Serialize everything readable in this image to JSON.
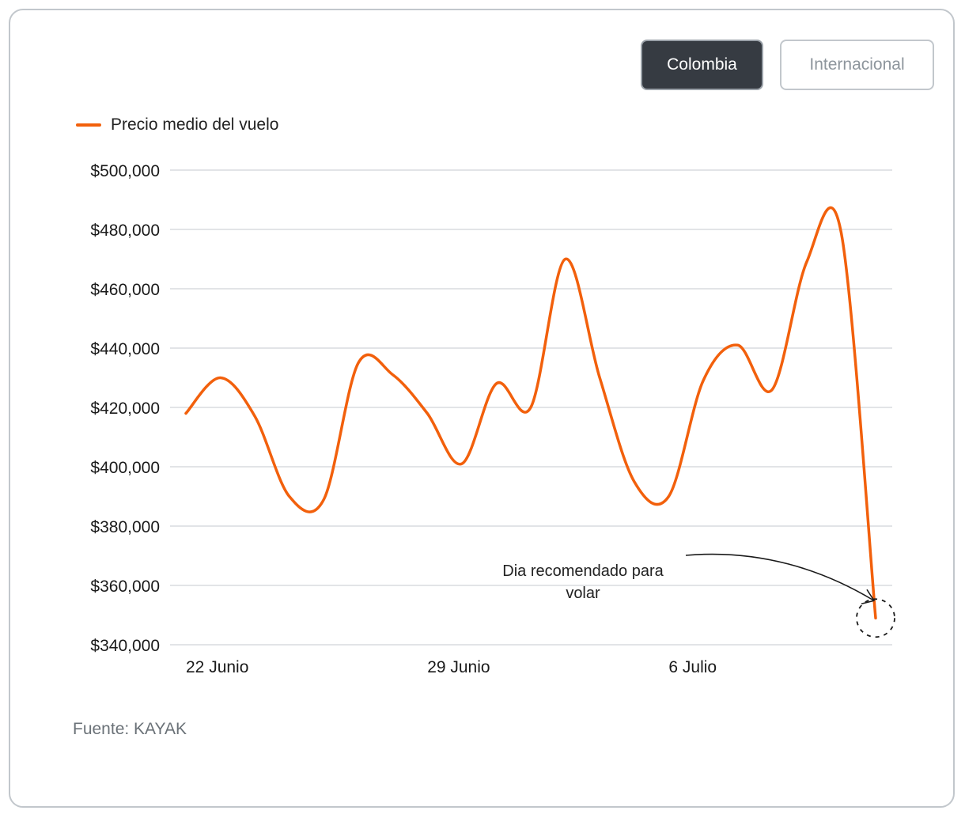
{
  "tabs": [
    {
      "label": "Colombia",
      "active": true
    },
    {
      "label": "Internacional",
      "active": false
    }
  ],
  "legend": {
    "label": "Precio medio del vuelo",
    "color": "#f2600c"
  },
  "source": "Fuente: KAYAK",
  "annotation": {
    "line1": "Dia recomendado para",
    "line2": "volar"
  },
  "colors": {
    "series": "#f2600c",
    "grid": "#d9dcdf",
    "tab_active_bg": "#363b42"
  },
  "chart_data": {
    "type": "line",
    "y_tick_labels": [
      "$500,000",
      "$480,000",
      "$460,000",
      "$440,000",
      "$420,000",
      "$400,000",
      "$380,000",
      "$360,000",
      "$340,000"
    ],
    "y_ticks": [
      500000,
      480000,
      460000,
      440000,
      420000,
      400000,
      380000,
      360000,
      340000
    ],
    "ylim": [
      340000,
      500000
    ],
    "x_ticks": [
      {
        "x": 1,
        "label": "22 Junio"
      },
      {
        "x": 8,
        "label": "29 Junio"
      },
      {
        "x": 15,
        "label": "6 Julio"
      }
    ],
    "xlim": [
      0.5,
      21.5
    ],
    "grid": true,
    "legend_position": "top-left",
    "series": [
      {
        "name": "Precio medio del vuelo",
        "x": [
          1,
          2,
          3,
          4,
          5,
          6,
          7,
          8,
          9,
          10,
          11,
          12,
          13,
          14,
          15,
          16,
          17,
          18,
          19,
          20,
          21
        ],
        "y": [
          418000,
          430000,
          417000,
          390000,
          389000,
          435000,
          431000,
          418000,
          401000,
          428000,
          420000,
          470000,
          430000,
          395000,
          390000,
          429000,
          441000,
          426000,
          469000,
          479000,
          349000
        ]
      }
    ],
    "highlight": {
      "x": 21,
      "y": 349000
    }
  }
}
